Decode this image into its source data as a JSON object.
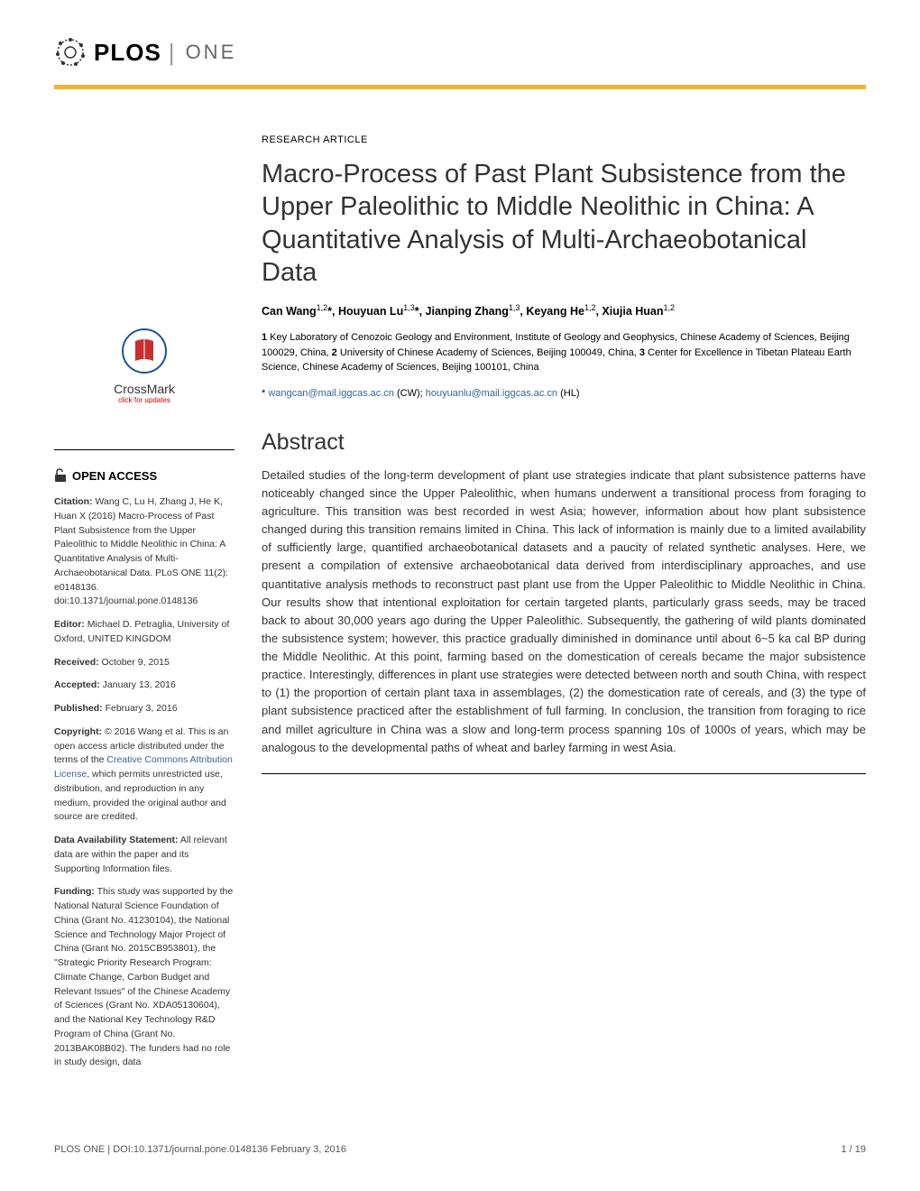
{
  "header": {
    "plos_label": "PLOS",
    "journal_label": "ONE"
  },
  "crossmark": {
    "label": "CrossMark",
    "sublabel": "click for updates"
  },
  "sidebar": {
    "open_access": "OPEN ACCESS",
    "citation_label": "Citation:",
    "citation_text": " Wang C, Lu H, Zhang J, He K, Huan X (2016) Macro-Process of Past Plant Subsistence from the Upper Paleolithic to Middle Neolithic in China: A Quantitative Analysis of Multi-Archaeobotanical Data. PLoS ONE 11(2): e0148136. doi:10.1371/journal.pone.0148136",
    "editor_label": "Editor:",
    "editor_text": " Michael D. Petraglia, University of Oxford, UNITED KINGDOM",
    "received_label": "Received:",
    "received_text": " October 9, 2015",
    "accepted_label": "Accepted:",
    "accepted_text": " January 13, 2016",
    "published_label": "Published:",
    "published_text": " February 3, 2016",
    "copyright_label": "Copyright:",
    "copyright_text_1": " © 2016 Wang et al. This is an open access article distributed under the terms of the ",
    "cc_license": "Creative Commons Attribution License",
    "copyright_text_2": ", which permits unrestricted use, distribution, and reproduction in any medium, provided the original author and source are credited.",
    "data_label": "Data Availability Statement:",
    "data_text": " All relevant data are within the paper and its Supporting Information files.",
    "funding_label": "Funding:",
    "funding_text": " This study was supported by the National Natural Science Foundation of China (Grant No. 41230104), the National Science and Technology Major Project of China (Grant No. 2015CB953801), the \"Strategic Priority Research Program: Climate Change, Carbon Budget and Relevant Issues\" of the Chinese Academy of Sciences (Grant No. XDA05130604), and the National Key Technology R&D Program of China (Grant No. 2013BAK08B02). The funders had no role in study design, data"
  },
  "article": {
    "type": "RESEARCH ARTICLE",
    "title": "Macro-Process of Past Plant Subsistence from the Upper Paleolithic to Middle Neolithic in China: A Quantitative Analysis of Multi-Archaeobotanical Data",
    "authors_html": "Can Wang<sup>1,2</sup>*, Houyuan Lu<sup>1,3</sup>*, Jianping Zhang<sup>1,3</sup>, Keyang He<sup>1,2</sup>, Xiujia Huan<sup>1,2</sup>",
    "affiliations_html": "<strong>1</strong> Key Laboratory of Cenozoic Geology and Environment, Institute of Geology and Geophysics, Chinese Academy of Sciences, Beijing 100029, China, <strong>2</strong> University of Chinese Academy of Sciences, Beijing 100049, China, <strong>3</strong> Center for Excellence in Tibetan Plateau Earth Science, Chinese Academy of Sciences, Beijing 100101, China",
    "corr_star": "* ",
    "corr_email1": "wangcan@mail.iggcas.ac.cn",
    "corr_mid": " (CW); ",
    "corr_email2": "houyuanlu@mail.iggcas.ac.cn",
    "corr_end": " (HL)",
    "abstract_heading": "Abstract",
    "abstract_text": "Detailed studies of the long-term development of plant use strategies indicate that plant subsistence patterns have noticeably changed since the Upper Paleolithic, when humans underwent a transitional process from foraging to agriculture. This transition was best recorded in west Asia; however, information about how plant subsistence changed during this transition remains limited in China. This lack of information is mainly due to a limited availability of sufficiently large, quantified archaeobotanical datasets and a paucity of related synthetic analyses. Here, we present a compilation of extensive archaeobotanical data derived from interdisciplinary approaches, and use quantitative analysis methods to reconstruct past plant use from the Upper Paleolithic to Middle Neolithic in China. Our results show that intentional exploitation for certain targeted plants, particularly grass seeds, may be traced back to about 30,000 years ago during the Upper Paleolithic. Subsequently, the gathering of wild plants dominated the subsistence system; however, this practice gradually diminished in dominance until about 6~5 ka cal BP during the Middle Neolithic. At this point, farming based on the domestication of cereals became the major subsistence practice. Interestingly, differences in plant use strategies were detected between north and south China, with respect to (1) the proportion of certain plant taxa in assemblages, (2) the domestication rate of cereals, and (3) the type of plant subsistence practiced after the establishment of full farming. In conclusion, the transition from foraging to rice and millet agriculture in China was a slow and long-term process spanning 10s of 1000s of years, which may be analogous to the developmental paths of wheat and barley farming in west Asia."
  },
  "footer": {
    "left": "PLOS ONE | DOI:10.1371/journal.pone.0148136   February 3, 2016",
    "right": "1 / 19"
  },
  "colors": {
    "orange_bar": "#f8af2c",
    "link_blue": "#336699",
    "text": "#333333"
  }
}
